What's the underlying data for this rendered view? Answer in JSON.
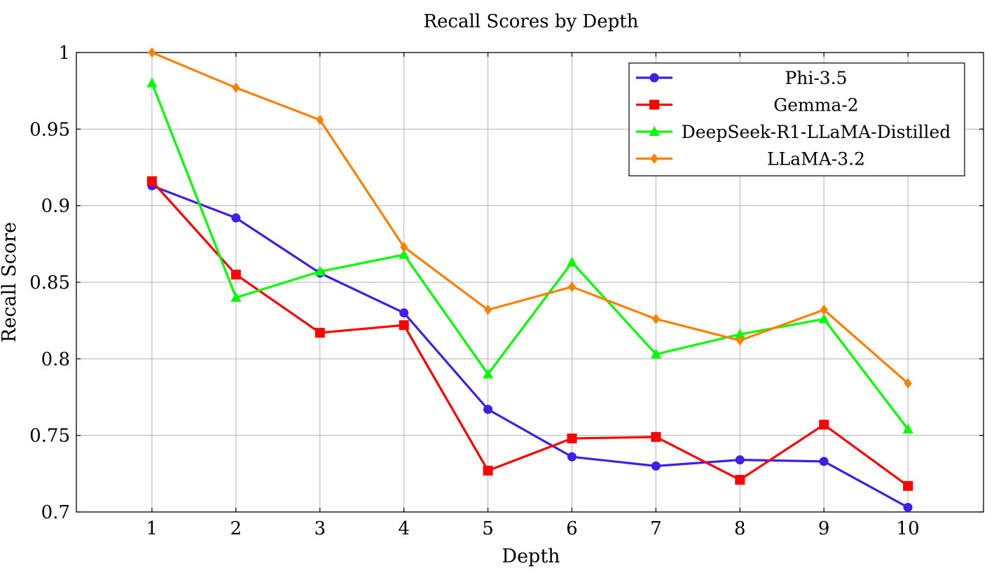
{
  "chart_data": {
    "type": "line",
    "title": "Recall Scores by Depth",
    "xlabel": "Depth",
    "ylabel": "Recall Score",
    "x": [
      1,
      2,
      3,
      4,
      5,
      6,
      7,
      8,
      9,
      10
    ],
    "xlim": [
      0.1,
      10.9
    ],
    "ylim": [
      0.7,
      1.0
    ],
    "xticks": [
      "1",
      "2",
      "3",
      "4",
      "5",
      "6",
      "7",
      "8",
      "9",
      "10"
    ],
    "yticks": [
      0.7,
      0.75,
      0.8,
      0.85,
      0.9,
      0.95,
      1.0
    ],
    "ytick_labels": [
      "0.7",
      "0.75",
      "0.8",
      "0.85",
      "0.9",
      "0.95",
      "1"
    ],
    "grid": true,
    "legend_position": "top-right",
    "series": [
      {
        "name": "Phi-3.5",
        "color": "#3f1fe8",
        "marker": "circle",
        "values": [
          0.913,
          0.892,
          0.856,
          0.83,
          0.767,
          0.736,
          0.73,
          0.734,
          0.733,
          0.703
        ]
      },
      {
        "name": "Gemma-2",
        "color": "#ff0000",
        "marker": "square",
        "values": [
          0.916,
          0.855,
          0.817,
          0.822,
          0.727,
          0.748,
          0.749,
          0.721,
          0.757,
          0.717
        ]
      },
      {
        "name": "DeepSeek-R1-LLaMA-Distilled",
        "color": "#00ff00",
        "marker": "triangle",
        "values": [
          0.98,
          0.84,
          0.857,
          0.868,
          0.79,
          0.863,
          0.803,
          0.816,
          0.826,
          0.754
        ]
      },
      {
        "name": "LLaMA-3.2",
        "color": "#ff8000",
        "marker": "diamond",
        "values": [
          1.0,
          0.977,
          0.956,
          0.873,
          0.832,
          0.847,
          0.826,
          0.812,
          0.832,
          0.784
        ]
      }
    ]
  }
}
